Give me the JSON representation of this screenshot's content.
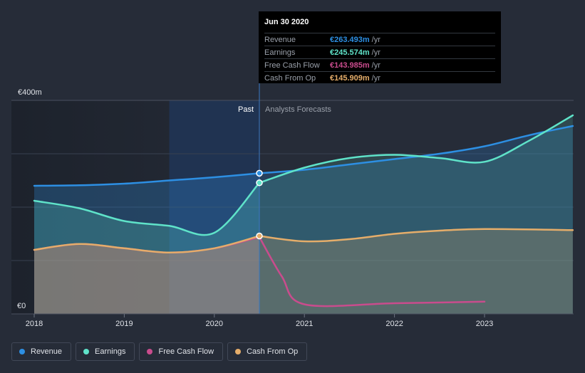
{
  "chart_data": {
    "type": "line",
    "title": "",
    "x_ticks": [
      2018,
      2019,
      2020,
      2021,
      2022,
      2023
    ],
    "x_tick_labels": [
      "2018",
      "2019",
      "2020",
      "2021",
      "2022",
      "2023"
    ],
    "y_tick_labels": [
      "€400m",
      "€0"
    ],
    "ylim": [
      0,
      400
    ],
    "xlim": [
      2017.8,
      2023.98
    ],
    "y_ticks": [
      0,
      100,
      200,
      300,
      400
    ],
    "past_label": "Past",
    "forecast_label": "Analysts Forecasts",
    "divider_x": 2020.5,
    "highlight_range": [
      2019.5,
      2020.5
    ],
    "series": [
      {
        "name": "Revenue",
        "color": "#2d8fe3",
        "values_past": [
          [
            2018,
            240
          ],
          [
            2018.5,
            241
          ],
          [
            2019,
            244
          ],
          [
            2019.5,
            250
          ],
          [
            2020,
            256
          ],
          [
            2020.5,
            263.5
          ]
        ],
        "values_forecast": [
          [
            2020.5,
            263.5
          ],
          [
            2021,
            270
          ],
          [
            2021.5,
            280
          ],
          [
            2022,
            290
          ],
          [
            2022.5,
            300
          ],
          [
            2023,
            314
          ],
          [
            2023.5,
            335
          ],
          [
            2023.98,
            352
          ]
        ]
      },
      {
        "name": "Earnings",
        "color": "#5fe3c9",
        "values_past": [
          [
            2018,
            212
          ],
          [
            2018.5,
            198
          ],
          [
            2019,
            174
          ],
          [
            2019.5,
            165
          ],
          [
            2020,
            152
          ],
          [
            2020.5,
            245.6
          ]
        ],
        "values_forecast": [
          [
            2020.5,
            245.6
          ],
          [
            2021,
            274
          ],
          [
            2021.5,
            292
          ],
          [
            2022,
            298
          ],
          [
            2022.5,
            292
          ],
          [
            2023,
            285
          ],
          [
            2023.5,
            325
          ],
          [
            2023.98,
            372
          ]
        ]
      },
      {
        "name": "Free Cash Flow",
        "color": "#c94c8d",
        "values_past": [
          [
            2018,
            120
          ],
          [
            2018.5,
            131
          ],
          [
            2019,
            123
          ],
          [
            2019.5,
            115
          ],
          [
            2020,
            123
          ],
          [
            2020.5,
            144
          ]
        ],
        "values_forecast": [
          [
            2020.5,
            144
          ],
          [
            2020.75,
            70
          ],
          [
            2021,
            18
          ],
          [
            2022,
            20
          ],
          [
            2023,
            23
          ]
        ]
      },
      {
        "name": "Cash From Op",
        "color": "#e5ad6a",
        "values_past": [
          [
            2018,
            120
          ],
          [
            2018.5,
            131
          ],
          [
            2019,
            123
          ],
          [
            2019.5,
            115
          ],
          [
            2020,
            123
          ],
          [
            2020.5,
            146
          ]
        ],
        "values_forecast": [
          [
            2020.5,
            146
          ],
          [
            2021,
            136
          ],
          [
            2021.5,
            140
          ],
          [
            2022,
            150
          ],
          [
            2022.5,
            156
          ],
          [
            2023,
            159
          ],
          [
            2023.98,
            157
          ]
        ]
      }
    ],
    "tooltip": {
      "date": "Jun 30 2020",
      "rows": [
        {
          "label": "Revenue",
          "value": "€263.493m",
          "unit": "/yr",
          "color": "#2d8fe3"
        },
        {
          "label": "Earnings",
          "value": "€245.574m",
          "unit": "/yr",
          "color": "#5fe3c9"
        },
        {
          "label": "Free Cash Flow",
          "value": "€143.985m",
          "unit": "/yr",
          "color": "#c94c8d"
        },
        {
          "label": "Cash From Op",
          "value": "€145.909m",
          "unit": "/yr",
          "color": "#e5ad6a"
        }
      ]
    },
    "legend": [
      {
        "label": "Revenue",
        "color": "#2d8fe3"
      },
      {
        "label": "Earnings",
        "color": "#5fe3c9"
      },
      {
        "label": "Free Cash Flow",
        "color": "#c94c8d"
      },
      {
        "label": "Cash From Op",
        "color": "#e5ad6a"
      }
    ]
  }
}
